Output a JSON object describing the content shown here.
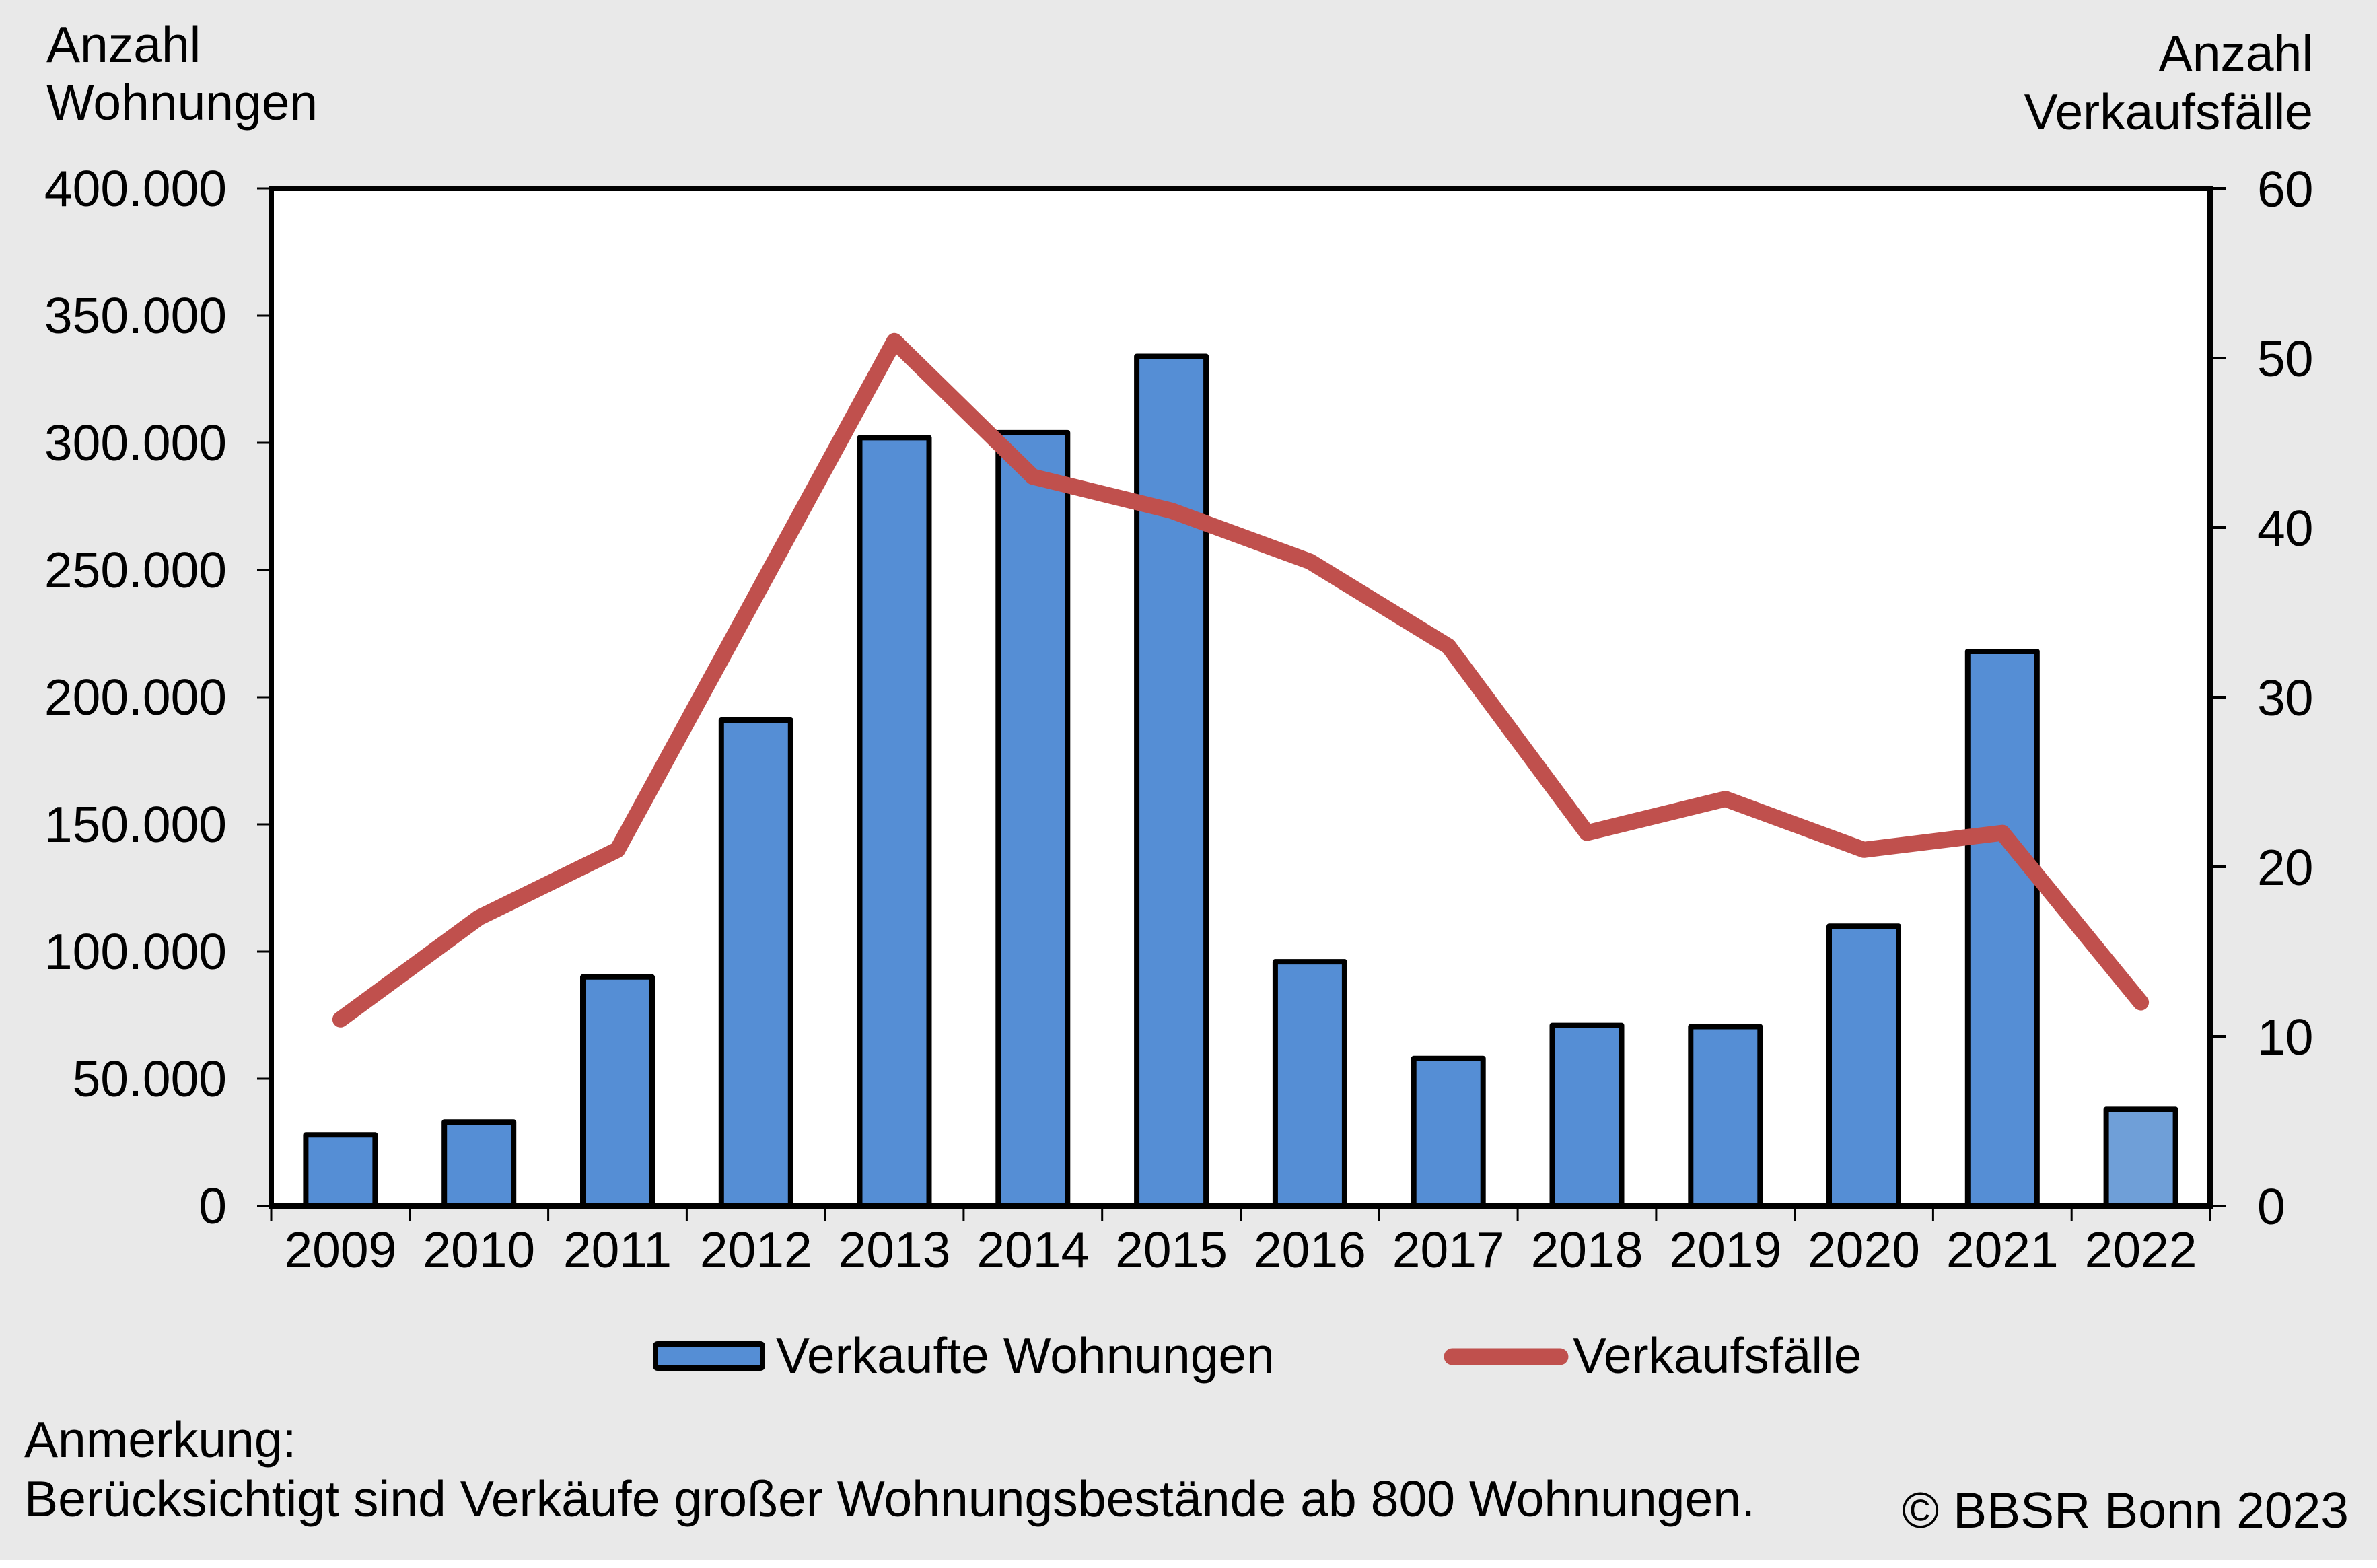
{
  "chart_data": {
    "type": "bar+line",
    "title": "",
    "categories": [
      "2009",
      "2010",
      "2011",
      "2012",
      "2013",
      "2014",
      "2015",
      "2016",
      "2017",
      "2018",
      "2019",
      "2020",
      "2021",
      "2022"
    ],
    "series": [
      {
        "name": "Verkaufte Wohnungen",
        "type": "bar",
        "axis": "left",
        "color": "#558ed5",
        "color_last": "#6f9fd8",
        "values": [
          28000,
          33000,
          90000,
          191000,
          302000,
          304000,
          334000,
          96000,
          58000,
          71000,
          70500,
          110000,
          218000,
          38000
        ]
      },
      {
        "name": "Verkaufsfälle",
        "type": "line",
        "axis": "right",
        "color": "#c0504d",
        "values": [
          11,
          17,
          21,
          36,
          51,
          43,
          41,
          38,
          33,
          22,
          24,
          21,
          22,
          12
        ]
      }
    ],
    "y_left": {
      "label_lines": [
        "Anzahl",
        "Wohnungen"
      ],
      "ylim": [
        0,
        400000
      ],
      "ticks": [
        0,
        50000,
        100000,
        150000,
        200000,
        250000,
        300000,
        350000,
        400000
      ],
      "tick_labels": [
        "0",
        "50.000",
        "100.000",
        "150.000",
        "200.000",
        "250.000",
        "300.000",
        "350.000",
        "400.000"
      ]
    },
    "y_right": {
      "label_lines": [
        "Anzahl",
        "Verkaufsfälle"
      ],
      "ylim": [
        0,
        60
      ],
      "ticks": [
        0,
        10,
        20,
        30,
        40,
        50,
        60
      ],
      "tick_labels": [
        "0",
        "10",
        "20",
        "30",
        "40",
        "50",
        "60"
      ]
    },
    "xlabel": "",
    "grid": false,
    "legend": {
      "position": "bottom-center",
      "entries": [
        "Verkaufte Wohnungen",
        "Verkaufsfälle"
      ]
    }
  },
  "footer": {
    "note_heading": "Anmerkung:",
    "note_text": "Berücksichtigt sind Verkäufe großer Wohnungsbestände ab 800 Wohnungen.",
    "copyright": "© BBSR Bonn 2023"
  },
  "colors": {
    "background": "#e9e9e9",
    "plot_background": "#ffffff",
    "axis": "#000000"
  }
}
